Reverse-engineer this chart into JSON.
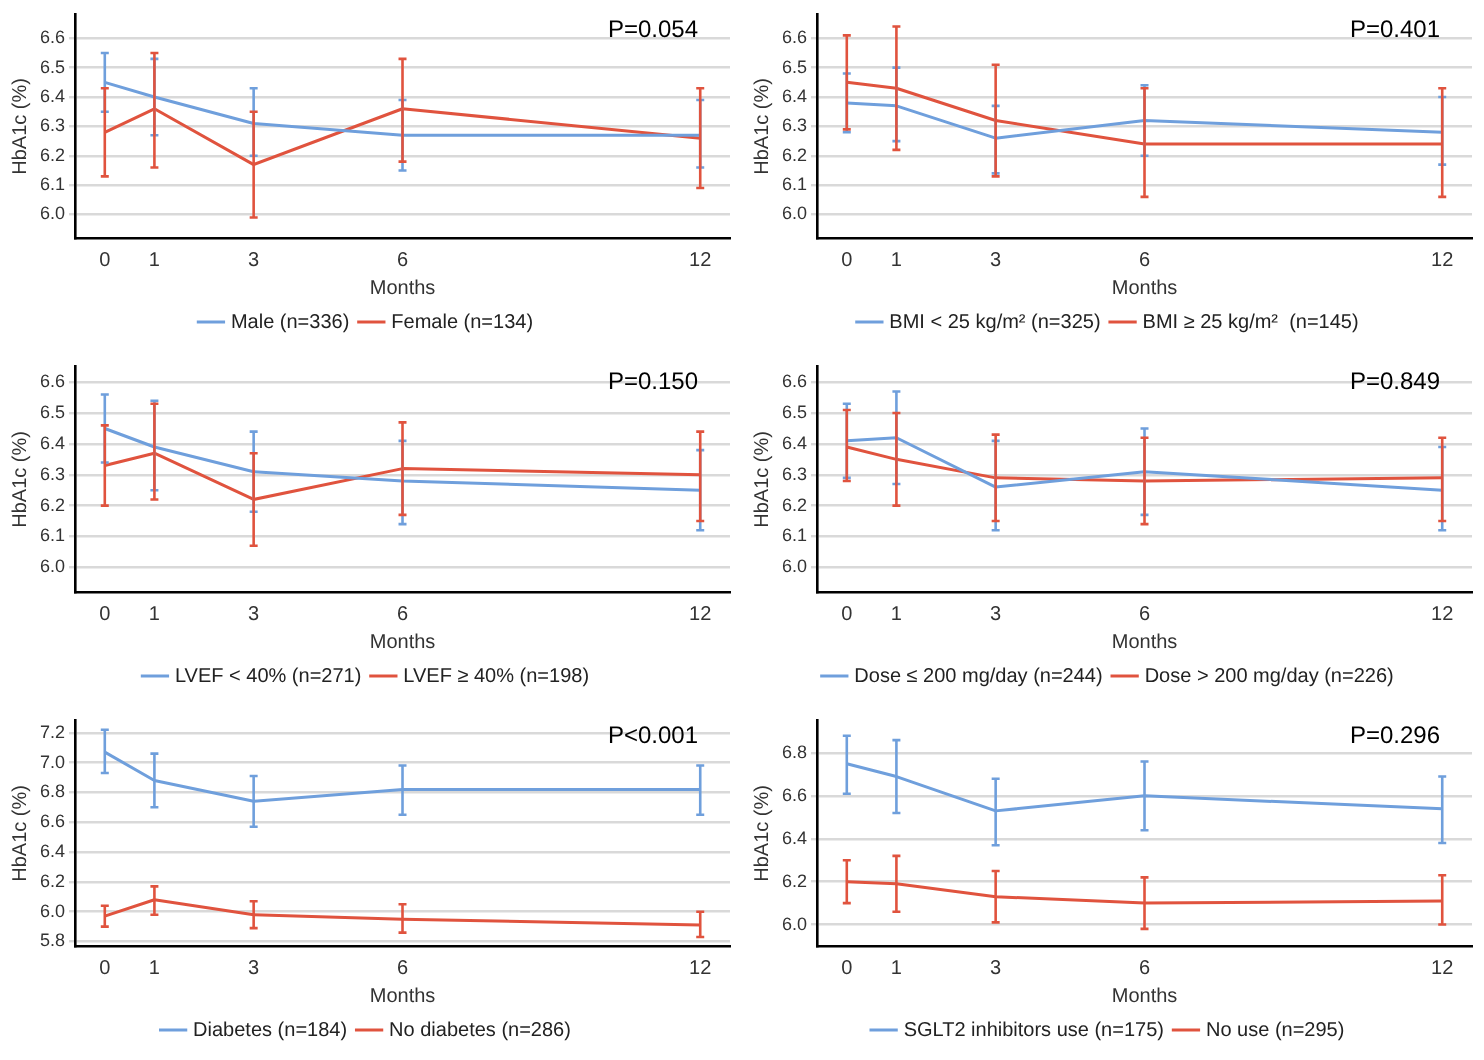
{
  "chart_data": [
    {
      "type": "line",
      "xlabel": "Months",
      "ylabel": "HbA1c (%)",
      "annotations": [
        "P=0.054"
      ],
      "x": [
        0,
        1,
        3,
        6,
        12
      ],
      "xlim": [
        -0.6,
        12.6
      ],
      "xticks": [
        0,
        1,
        3,
        6,
        12
      ],
      "ylim": [
        5.92,
        6.68
      ],
      "yticks": [
        {
          "value": 6,
          "label": "6.0"
        },
        {
          "value": 6.1,
          "label": "6.1"
        },
        {
          "value": 6.2,
          "label": "6.2"
        },
        {
          "value": 6.3,
          "label": "6.3"
        },
        {
          "value": 6.4,
          "label": "6.4"
        },
        {
          "value": 6.5,
          "label": "6.5"
        },
        {
          "value": 6.6,
          "label": "6.6"
        }
      ],
      "grid": "y",
      "legend": "bottom",
      "marker": "none",
      "series": [
        {
          "name": "Male (n=336)",
          "color": "#6f9fdc",
          "values": [
            6.45,
            6.4,
            6.31,
            6.27,
            6.27
          ],
          "errors": [
            [
              6.35,
              6.55
            ],
            [
              6.27,
              6.53
            ],
            [
              6.2,
              6.43
            ],
            [
              6.15,
              6.39
            ],
            [
              6.16,
              6.39
            ]
          ]
        },
        {
          "name": "Female (n=134)",
          "color": "#e0533e",
          "values": [
            6.28,
            6.36,
            6.17,
            6.36,
            6.26
          ],
          "errors": [
            [
              6.13,
              6.43
            ],
            [
              6.16,
              6.55
            ],
            [
              5.99,
              6.35
            ],
            [
              6.18,
              6.53
            ],
            [
              6.09,
              6.43
            ]
          ]
        }
      ]
    },
    {
      "type": "line",
      "xlabel": "Months",
      "ylabel": "HbA1c (%)",
      "annotations": [
        "P=0.401"
      ],
      "x": [
        0,
        1,
        3,
        6,
        12
      ],
      "xlim": [
        -0.6,
        12.6
      ],
      "xticks": [
        0,
        1,
        3,
        6,
        12
      ],
      "ylim": [
        5.92,
        6.68
      ],
      "yticks": [
        {
          "value": 6,
          "label": "6.0"
        },
        {
          "value": 6.1,
          "label": "6.1"
        },
        {
          "value": 6.2,
          "label": "6.2"
        },
        {
          "value": 6.3,
          "label": "6.3"
        },
        {
          "value": 6.4,
          "label": "6.4"
        },
        {
          "value": 6.5,
          "label": "6.5"
        },
        {
          "value": 6.6,
          "label": "6.6"
        }
      ],
      "grid": "y",
      "legend": "bottom",
      "marker": "none",
      "series": [
        {
          "name": "BMI < 25 kg/m² (n=325)",
          "color": "#6f9fdc",
          "values": [
            6.38,
            6.37,
            6.26,
            6.32,
            6.28
          ],
          "errors": [
            [
              6.28,
              6.48
            ],
            [
              6.25,
              6.5
            ],
            [
              6.14,
              6.37
            ],
            [
              6.2,
              6.44
            ],
            [
              6.17,
              6.4
            ]
          ]
        },
        {
          "name": "BMI ≥ 25 kg/m²  (n=145)",
          "color": "#e0533e",
          "values": [
            6.45,
            6.43,
            6.32,
            6.24,
            6.24
          ],
          "errors": [
            [
              6.29,
              6.61
            ],
            [
              6.22,
              6.64
            ],
            [
              6.13,
              6.51
            ],
            [
              6.06,
              6.43
            ],
            [
              6.06,
              6.43
            ]
          ]
        }
      ]
    },
    {
      "type": "line",
      "xlabel": "Months",
      "ylabel": "HbA1c (%)",
      "annotations": [
        "P=0.150"
      ],
      "x": [
        0,
        1,
        3,
        6,
        12
      ],
      "xlim": [
        -0.6,
        12.6
      ],
      "xticks": [
        0,
        1,
        3,
        6,
        12
      ],
      "ylim": [
        5.92,
        6.65
      ],
      "yticks": [
        {
          "value": 6,
          "label": "6.0"
        },
        {
          "value": 6.1,
          "label": "6.1"
        },
        {
          "value": 6.2,
          "label": "6.2"
        },
        {
          "value": 6.3,
          "label": "6.3"
        },
        {
          "value": 6.4,
          "label": "6.4"
        },
        {
          "value": 6.5,
          "label": "6.5"
        },
        {
          "value": 6.6,
          "label": "6.6"
        }
      ],
      "grid": "y",
      "legend": "bottom",
      "marker": "none",
      "series": [
        {
          "name": "LVEF < 40% (n=271)",
          "color": "#6f9fdc",
          "values": [
            6.45,
            6.39,
            6.31,
            6.28,
            6.25
          ],
          "errors": [
            [
              6.34,
              6.56
            ],
            [
              6.25,
              6.54
            ],
            [
              6.18,
              6.44
            ],
            [
              6.14,
              6.41
            ],
            [
              6.12,
              6.38
            ]
          ]
        },
        {
          "name": "LVEF ≥ 40% (n=198)",
          "color": "#e0533e",
          "values": [
            6.33,
            6.37,
            6.22,
            6.32,
            6.3
          ],
          "errors": [
            [
              6.2,
              6.46
            ],
            [
              6.22,
              6.53
            ],
            [
              6.07,
              6.37
            ],
            [
              6.17,
              6.47
            ],
            [
              6.15,
              6.44
            ]
          ]
        }
      ]
    },
    {
      "type": "line",
      "xlabel": "Months",
      "ylabel": "HbA1c (%)",
      "annotations": [
        "P=0.849"
      ],
      "x": [
        0,
        1,
        3,
        6,
        12
      ],
      "xlim": [
        -0.6,
        12.6
      ],
      "xticks": [
        0,
        1,
        3,
        6,
        12
      ],
      "ylim": [
        5.92,
        6.65
      ],
      "yticks": [
        {
          "value": 6,
          "label": "6.0"
        },
        {
          "value": 6.1,
          "label": "6.1"
        },
        {
          "value": 6.2,
          "label": "6.2"
        },
        {
          "value": 6.3,
          "label": "6.3"
        },
        {
          "value": 6.4,
          "label": "6.4"
        },
        {
          "value": 6.5,
          "label": "6.5"
        },
        {
          "value": 6.6,
          "label": "6.6"
        }
      ],
      "grid": "y",
      "legend": "bottom",
      "marker": "none",
      "series": [
        {
          "name": "Dose ≤ 200 mg/day (n=244)",
          "color": "#6f9fdc",
          "values": [
            6.41,
            6.42,
            6.26,
            6.31,
            6.25
          ],
          "errors": [
            [
              6.29,
              6.53
            ],
            [
              6.27,
              6.57
            ],
            [
              6.12,
              6.41
            ],
            [
              6.17,
              6.45
            ],
            [
              6.12,
              6.39
            ]
          ]
        },
        {
          "name": "Dose > 200 mg/day (n=226)",
          "color": "#e0533e",
          "values": [
            6.39,
            6.35,
            6.29,
            6.28,
            6.29
          ],
          "errors": [
            [
              6.28,
              6.51
            ],
            [
              6.2,
              6.5
            ],
            [
              6.15,
              6.43
            ],
            [
              6.14,
              6.42
            ],
            [
              6.15,
              6.42
            ]
          ]
        }
      ]
    },
    {
      "type": "line",
      "xlabel": "Months",
      "ylabel": "HbA1c (%)",
      "annotations": [
        "P<0.001"
      ],
      "x": [
        0,
        1,
        3,
        6,
        12
      ],
      "xlim": [
        -0.6,
        12.6
      ],
      "xticks": [
        0,
        1,
        3,
        6,
        12
      ],
      "ylim": [
        5.77,
        7.28
      ],
      "yticks": [
        {
          "value": 5.8,
          "label": "5.8"
        },
        {
          "value": 6,
          "label": "6.0"
        },
        {
          "value": 6.2,
          "label": "6.2"
        },
        {
          "value": 6.4,
          "label": "6.4"
        },
        {
          "value": 6.6,
          "label": "6.6"
        },
        {
          "value": 6.8,
          "label": "6.8"
        },
        {
          "value": 7,
          "label": "7.0"
        },
        {
          "value": 7.2,
          "label": "7.2"
        }
      ],
      "grid": "y",
      "legend": "bottom",
      "marker": "none",
      "series": [
        {
          "name": "Diabetes (n=184)",
          "color": "#6f9fdc",
          "values": [
            7.07,
            6.88,
            6.74,
            6.82,
            6.82
          ],
          "errors": [
            [
              6.93,
              7.22
            ],
            [
              6.7,
              7.06
            ],
            [
              6.57,
              6.91
            ],
            [
              6.65,
              6.98
            ],
            [
              6.65,
              6.98
            ]
          ]
        },
        {
          "name": "No diabetes (n=286)",
          "color": "#e0533e",
          "values": [
            5.97,
            6.08,
            5.98,
            5.95,
            5.91
          ],
          "errors": [
            [
              5.9,
              6.04
            ],
            [
              5.98,
              6.17
            ],
            [
              5.89,
              6.07
            ],
            [
              5.86,
              6.05
            ],
            [
              5.83,
              6.0
            ]
          ]
        }
      ]
    },
    {
      "type": "line",
      "xlabel": "Months",
      "ylabel": "HbA1c (%)",
      "annotations": [
        "P=0.296"
      ],
      "x": [
        0,
        1,
        3,
        6,
        12
      ],
      "xlim": [
        -0.6,
        12.6
      ],
      "xticks": [
        0,
        1,
        3,
        6,
        12
      ],
      "ylim": [
        5.9,
        6.95
      ],
      "yticks": [
        {
          "value": 6,
          "label": "6.0"
        },
        {
          "value": 6.2,
          "label": "6.2"
        },
        {
          "value": 6.4,
          "label": "6.4"
        },
        {
          "value": 6.6,
          "label": "6.6"
        },
        {
          "value": 6.8,
          "label": "6.8"
        }
      ],
      "grid": "y",
      "legend": "bottom",
      "marker": "none",
      "series": [
        {
          "name": "SGLT2 inhibitors use (n=175)",
          "color": "#6f9fdc",
          "values": [
            6.75,
            6.69,
            6.53,
            6.6,
            6.54
          ],
          "errors": [
            [
              6.61,
              6.88
            ],
            [
              6.52,
              6.86
            ],
            [
              6.37,
              6.68
            ],
            [
              6.44,
              6.76
            ],
            [
              6.38,
              6.69
            ]
          ]
        },
        {
          "name": "No use (n=295)",
          "color": "#e0533e",
          "values": [
            6.2,
            6.19,
            6.13,
            6.1,
            6.11
          ],
          "errors": [
            [
              6.1,
              6.3
            ],
            [
              6.06,
              6.32
            ],
            [
              6.01,
              6.25
            ],
            [
              5.98,
              6.22
            ],
            [
              6.0,
              6.23
            ]
          ]
        }
      ]
    }
  ]
}
